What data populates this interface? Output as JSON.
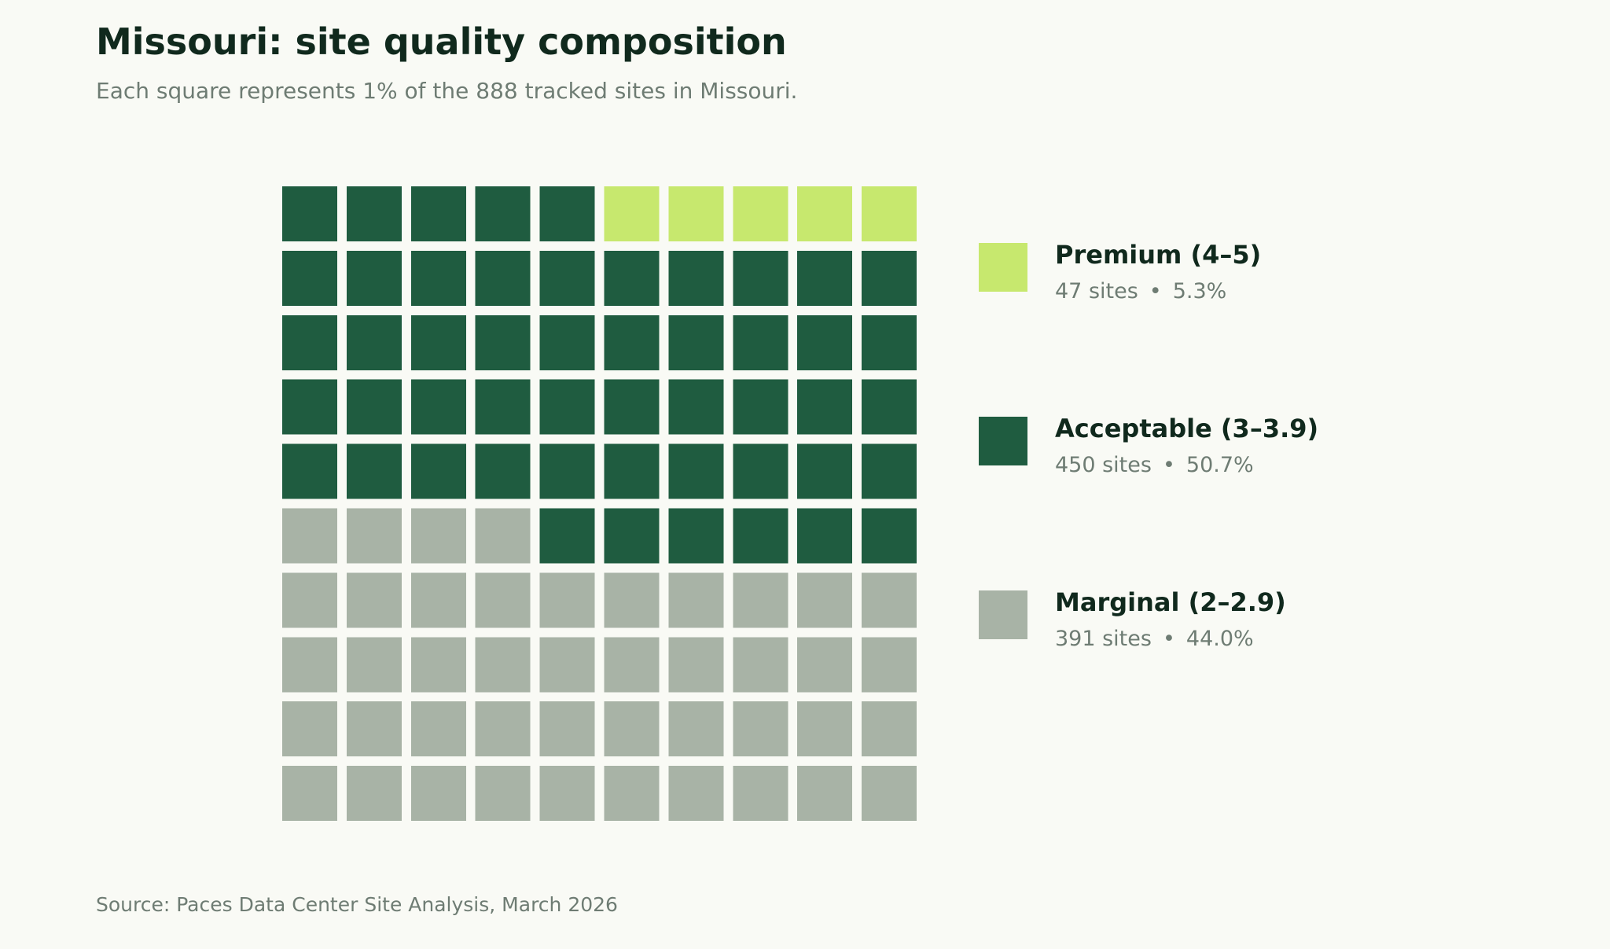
{
  "title": "Missouri: site quality composition",
  "subtitle": "Each square represents 1% of the 888 tracked sites in Missouri.",
  "source": "Source: Paces Data Center Site Analysis, March 2026",
  "chart_data": {
    "type": "waffle",
    "grid": {
      "rows": 10,
      "cols": 10,
      "units_per_square": "1%"
    },
    "total_sites": 888,
    "fill_order": "bottom-up, row by row",
    "categories": [
      {
        "key": "marginal",
        "label": "Marginal (2–2.9)",
        "sites": 391,
        "percent": 44.0,
        "squares": 44,
        "sites_text": "391 sites",
        "percent_text": "44.0%",
        "color": "#a8b3a6"
      },
      {
        "key": "acceptable",
        "label": "Acceptable (3–3.9)",
        "sites": 450,
        "percent": 50.7,
        "squares": 51,
        "sites_text": "450 sites",
        "percent_text": "50.7%",
        "color": "#1f5c40"
      },
      {
        "key": "premium",
        "label": "Premium (4–5)",
        "sites": 47,
        "percent": 5.3,
        "squares": 5,
        "sites_text": "47 sites",
        "percent_text": "5.3%",
        "color": "#c7e86e"
      }
    ],
    "legend": [
      "premium",
      "acceptable",
      "marginal"
    ],
    "separator": "•"
  }
}
